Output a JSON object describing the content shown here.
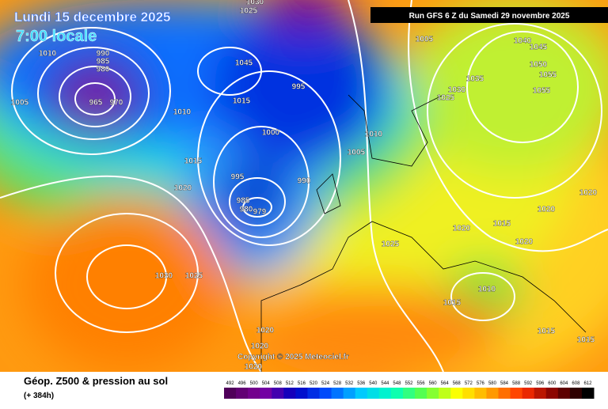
{
  "header": {
    "date": "Lundi 15 decembre 2025",
    "time": "7:00 locale",
    "run": "Run GFS 6 Z du Samedi 29 novembre 2025"
  },
  "copyright": "Copyright © 2025 Meteociel.fr",
  "footer": {
    "title": "Géop. Z500 & pression au sol",
    "lead": "(+ 384h)"
  },
  "isobars": [
    1010,
    990,
    985,
    980,
    965,
    970,
    1005,
    1025,
    1030,
    1045,
    1015,
    995,
    1000,
    1005,
    1010,
    1005,
    1015,
    1020,
    995,
    990,
    985,
    980,
    979,
    1030,
    1025,
    1025,
    1020,
    1015,
    1020,
    1020,
    1020,
    1010,
    1015,
    1015,
    1015,
    1020,
    1020,
    1020,
    1040,
    1045,
    1050,
    1055,
    1055,
    1035,
    1030,
    1025,
    1010
  ],
  "colorbar": [
    492,
    496,
    500,
    504,
    508,
    512,
    516,
    520,
    524,
    528,
    532,
    536,
    540,
    544,
    548,
    552,
    556,
    560,
    564,
    568,
    572,
    576,
    580,
    584,
    588,
    592,
    596,
    600,
    604,
    608,
    612
  ]
}
